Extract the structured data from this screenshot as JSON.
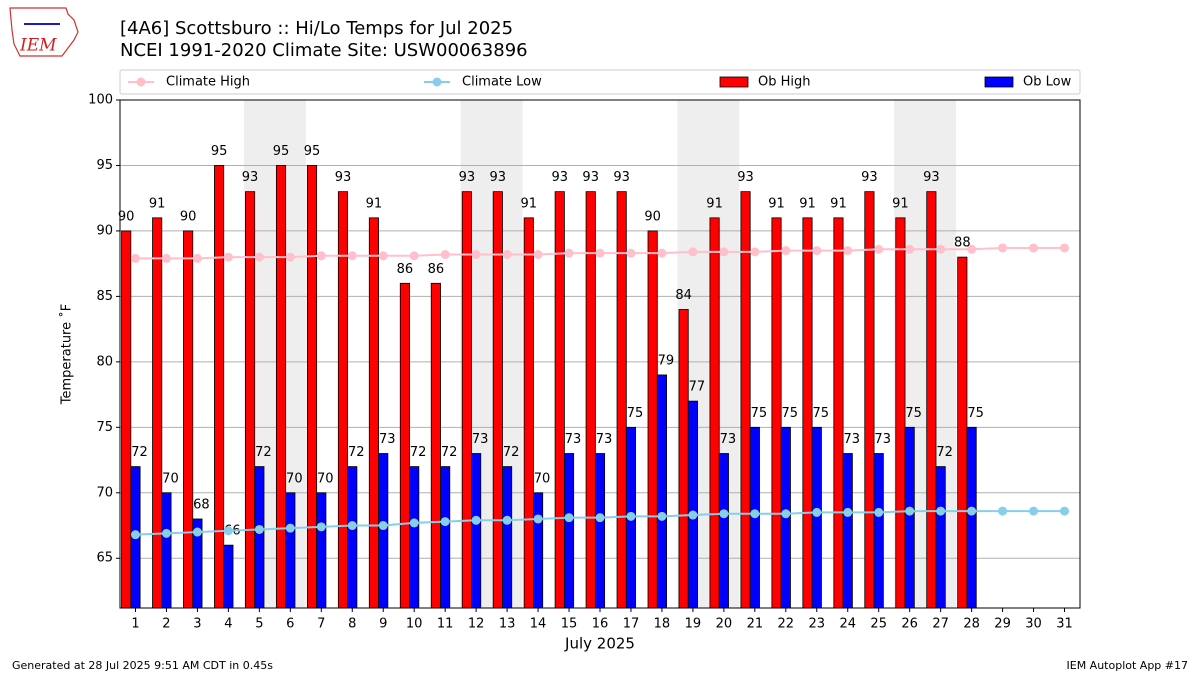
{
  "header": {
    "logo": "IEM"
  },
  "chart_data": {
    "type": "bar",
    "title": "[4A6] Scottsburo :: Hi/Lo Temps for Jul 2025",
    "subtitle": "NCEI 1991-2020 Climate Site: USW00063896",
    "x_label": "July 2025",
    "y_label": "Temperature ˚F",
    "categories": [
      "1",
      "2",
      "3",
      "4",
      "5",
      "6",
      "7",
      "8",
      "9",
      "10",
      "11",
      "12",
      "13",
      "14",
      "15",
      "16",
      "17",
      "18",
      "19",
      "20",
      "21",
      "22",
      "23",
      "24",
      "25",
      "26",
      "27",
      "28",
      "29",
      "30",
      "31"
    ],
    "series": [
      {
        "name": "Climate High",
        "kind": "line",
        "color": "#ffc0cb",
        "values": [
          87.9,
          87.9,
          87.9,
          88.0,
          88.0,
          88.0,
          88.1,
          88.1,
          88.1,
          88.1,
          88.2,
          88.2,
          88.2,
          88.2,
          88.3,
          88.3,
          88.3,
          88.3,
          88.4,
          88.4,
          88.4,
          88.5,
          88.5,
          88.5,
          88.6,
          88.6,
          88.6,
          88.6,
          88.7,
          88.7,
          88.7
        ]
      },
      {
        "name": "Climate Low",
        "kind": "line",
        "color": "#87ceeb",
        "values": [
          66.8,
          66.9,
          67.0,
          67.1,
          67.2,
          67.3,
          67.4,
          67.5,
          67.5,
          67.7,
          67.8,
          67.9,
          67.9,
          68.0,
          68.1,
          68.1,
          68.2,
          68.2,
          68.3,
          68.4,
          68.4,
          68.4,
          68.5,
          68.5,
          68.5,
          68.6,
          68.6,
          68.6,
          68.6,
          68.6,
          68.6
        ]
      },
      {
        "name": "Ob High",
        "kind": "bar",
        "color": "#ff0000",
        "values": [
          90,
          91,
          90,
          95,
          93,
          95,
          95,
          93,
          91,
          86,
          86,
          93,
          93,
          91,
          93,
          93,
          93,
          90,
          84,
          91,
          93,
          91,
          91,
          91,
          93,
          91,
          93,
          88,
          null,
          null,
          null
        ]
      },
      {
        "name": "Ob Low",
        "kind": "bar",
        "color": "#0000ff",
        "values": [
          72,
          70,
          68,
          66,
          72,
          70,
          70,
          72,
          73,
          72,
          72,
          73,
          72,
          70,
          73,
          73,
          75,
          79,
          77,
          73,
          75,
          75,
          75,
          73,
          73,
          75,
          72,
          75,
          null,
          null,
          null
        ]
      }
    ],
    "shaded_days": [
      5,
      6,
      12,
      13,
      19,
      20,
      26,
      27
    ],
    "shade_color": "#eeeeee",
    "ylim": [
      61.2,
      100
    ],
    "yticks": [
      65,
      70,
      75,
      80,
      85,
      90,
      95,
      100
    ],
    "grid": true,
    "legend": "top",
    "footer_left": "Generated at 28 Jul 2025 9:51 AM CDT in 0.45s",
    "footer_right": "IEM Autoplot App #17"
  }
}
